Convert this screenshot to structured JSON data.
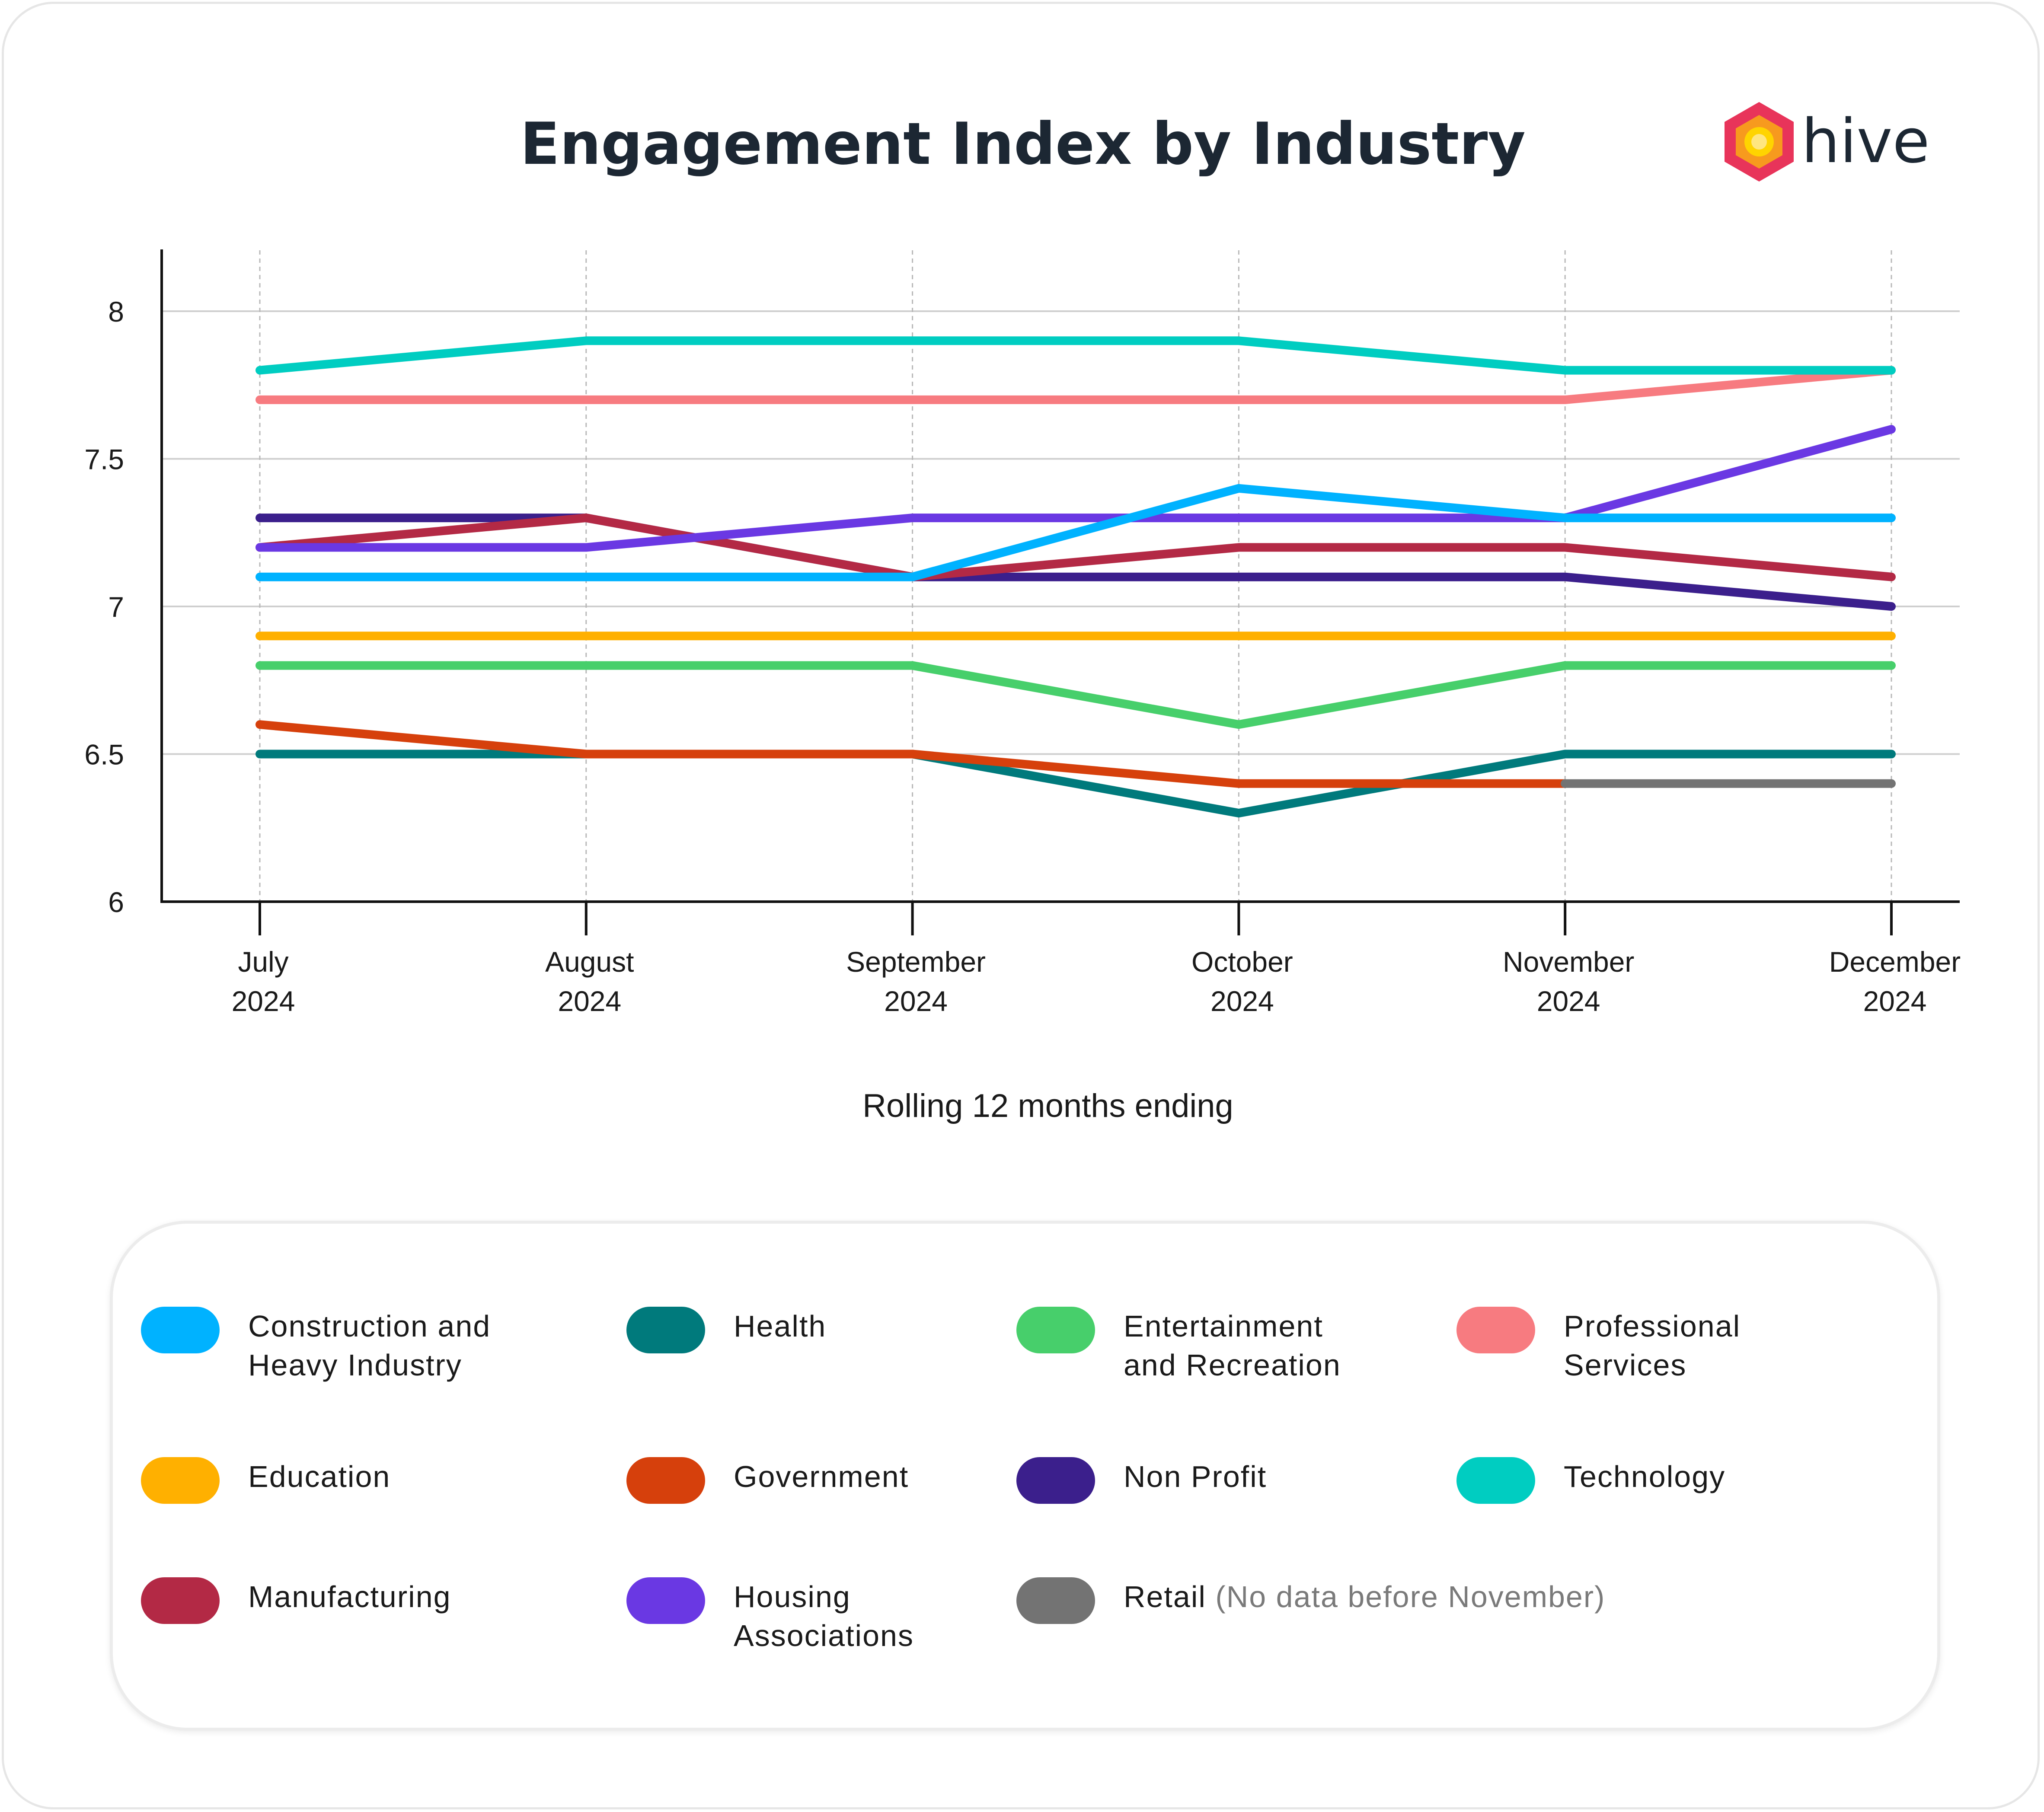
{
  "brand": {
    "name": "hive",
    "logo_colors": [
      "#e8345a",
      "#f79a1e",
      "#ffd400",
      "#ffe680"
    ]
  },
  "chart_data": {
    "type": "line",
    "title": "Engagement Index by Industry",
    "xlabel": "Rolling 12 months ending",
    "ylabel": "",
    "ylim": [
      6,
      8.2
    ],
    "yticks": [
      "8",
      "7.5",
      "7",
      "6.5",
      "6"
    ],
    "ytick_values": [
      8,
      7.5,
      7,
      6.5,
      6
    ],
    "grid": {
      "horizontal": true,
      "vertical_dashed": true
    },
    "categories": [
      {
        "month": "July",
        "year": "2024"
      },
      {
        "month": "August",
        "year": "2024"
      },
      {
        "month": "September",
        "year": "2024"
      },
      {
        "month": "October",
        "year": "2024"
      },
      {
        "month": "November",
        "year": "2024"
      },
      {
        "month": "December",
        "year": "2024"
      }
    ],
    "series": [
      {
        "name": "Health",
        "color": "#007a7c",
        "values": [
          6.5,
          6.5,
          6.5,
          6.3,
          6.5,
          6.5
        ]
      },
      {
        "name": "Government",
        "color": "#d6400c",
        "values": [
          6.6,
          6.5,
          6.5,
          6.4,
          6.4,
          null
        ]
      },
      {
        "name": "Retail",
        "color": "#737373",
        "values": [
          null,
          null,
          null,
          null,
          6.4,
          6.4
        ]
      },
      {
        "name": "Entertainment and Recreation",
        "color": "#47cf6b",
        "values": [
          6.8,
          6.8,
          6.8,
          6.6,
          6.8,
          6.8
        ]
      },
      {
        "name": "Education",
        "color": "#ffb000",
        "values": [
          6.9,
          6.9,
          6.9,
          6.9,
          6.9,
          6.9
        ]
      },
      {
        "name": "Non Profit",
        "color": "#3b1f8c",
        "values": [
          7.3,
          7.3,
          7.1,
          7.1,
          7.1,
          7.0
        ]
      },
      {
        "name": "Manufacturing",
        "color": "#b32945",
        "values": [
          7.2,
          7.3,
          7.1,
          7.2,
          7.2,
          7.1
        ]
      },
      {
        "name": "Housing Associations",
        "color": "#6a38e3",
        "values": [
          7.2,
          7.2,
          7.3,
          7.3,
          7.3,
          7.6
        ]
      },
      {
        "name": "Construction and Heavy Industry",
        "color": "#00b2ff",
        "values": [
          7.1,
          7.1,
          7.1,
          7.4,
          7.3,
          7.3
        ]
      },
      {
        "name": "Professional Services",
        "color": "#f77b80",
        "values": [
          7.7,
          7.7,
          7.7,
          7.7,
          7.7,
          7.8
        ]
      },
      {
        "name": "Technology",
        "color": "#00cdc1",
        "values": [
          7.8,
          7.9,
          7.9,
          7.9,
          7.8,
          7.8
        ]
      }
    ]
  },
  "legend": {
    "items": [
      {
        "label": "Construction and Heavy Industry",
        "color": "#00b2ff",
        "note": ""
      },
      {
        "label": "Health",
        "color": "#007a7c",
        "note": ""
      },
      {
        "label": "Entertainment and Recreation",
        "color": "#47cf6b",
        "note": ""
      },
      {
        "label": "Professional Services",
        "color": "#f77b80",
        "note": ""
      },
      {
        "label": "Education",
        "color": "#ffb000",
        "note": ""
      },
      {
        "label": "Government",
        "color": "#d6400c",
        "note": ""
      },
      {
        "label": "Non Profit",
        "color": "#3b1f8c",
        "note": ""
      },
      {
        "label": "Technology",
        "color": "#00cdc1",
        "note": ""
      },
      {
        "label": "Manufacturing",
        "color": "#b32945",
        "note": ""
      },
      {
        "label": "Housing Associations",
        "color": "#6a38e3",
        "note": ""
      },
      {
        "label": "Retail",
        "color": "#737373",
        "note": "(No data before November)"
      }
    ]
  }
}
